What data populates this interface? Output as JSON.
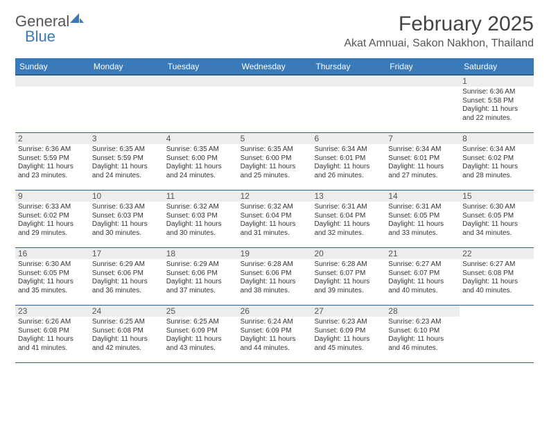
{
  "brand": {
    "word1": "General",
    "word2": "Blue"
  },
  "title": "February 2025",
  "location": "Akat Amnuai, Sakon Nakhon, Thailand",
  "colors": {
    "header_blue": "#3a7ab8",
    "header_border": "#2d5e8f",
    "daynum_bg": "#eceeee",
    "text": "#333333",
    "title_text": "#444444"
  },
  "dow": [
    "Sunday",
    "Monday",
    "Tuesday",
    "Wednesday",
    "Thursday",
    "Friday",
    "Saturday"
  ],
  "weeks": [
    [
      null,
      null,
      null,
      null,
      null,
      null,
      {
        "n": "1",
        "sr": "Sunrise: 6:36 AM",
        "ss": "Sunset: 5:58 PM",
        "dl": "Daylight: 11 hours and 22 minutes."
      }
    ],
    [
      {
        "n": "2",
        "sr": "Sunrise: 6:36 AM",
        "ss": "Sunset: 5:59 PM",
        "dl": "Daylight: 11 hours and 23 minutes."
      },
      {
        "n": "3",
        "sr": "Sunrise: 6:35 AM",
        "ss": "Sunset: 5:59 PM",
        "dl": "Daylight: 11 hours and 24 minutes."
      },
      {
        "n": "4",
        "sr": "Sunrise: 6:35 AM",
        "ss": "Sunset: 6:00 PM",
        "dl": "Daylight: 11 hours and 24 minutes."
      },
      {
        "n": "5",
        "sr": "Sunrise: 6:35 AM",
        "ss": "Sunset: 6:00 PM",
        "dl": "Daylight: 11 hours and 25 minutes."
      },
      {
        "n": "6",
        "sr": "Sunrise: 6:34 AM",
        "ss": "Sunset: 6:01 PM",
        "dl": "Daylight: 11 hours and 26 minutes."
      },
      {
        "n": "7",
        "sr": "Sunrise: 6:34 AM",
        "ss": "Sunset: 6:01 PM",
        "dl": "Daylight: 11 hours and 27 minutes."
      },
      {
        "n": "8",
        "sr": "Sunrise: 6:34 AM",
        "ss": "Sunset: 6:02 PM",
        "dl": "Daylight: 11 hours and 28 minutes."
      }
    ],
    [
      {
        "n": "9",
        "sr": "Sunrise: 6:33 AM",
        "ss": "Sunset: 6:02 PM",
        "dl": "Daylight: 11 hours and 29 minutes."
      },
      {
        "n": "10",
        "sr": "Sunrise: 6:33 AM",
        "ss": "Sunset: 6:03 PM",
        "dl": "Daylight: 11 hours and 30 minutes."
      },
      {
        "n": "11",
        "sr": "Sunrise: 6:32 AM",
        "ss": "Sunset: 6:03 PM",
        "dl": "Daylight: 11 hours and 30 minutes."
      },
      {
        "n": "12",
        "sr": "Sunrise: 6:32 AM",
        "ss": "Sunset: 6:04 PM",
        "dl": "Daylight: 11 hours and 31 minutes."
      },
      {
        "n": "13",
        "sr": "Sunrise: 6:31 AM",
        "ss": "Sunset: 6:04 PM",
        "dl": "Daylight: 11 hours and 32 minutes."
      },
      {
        "n": "14",
        "sr": "Sunrise: 6:31 AM",
        "ss": "Sunset: 6:05 PM",
        "dl": "Daylight: 11 hours and 33 minutes."
      },
      {
        "n": "15",
        "sr": "Sunrise: 6:30 AM",
        "ss": "Sunset: 6:05 PM",
        "dl": "Daylight: 11 hours and 34 minutes."
      }
    ],
    [
      {
        "n": "16",
        "sr": "Sunrise: 6:30 AM",
        "ss": "Sunset: 6:05 PM",
        "dl": "Daylight: 11 hours and 35 minutes."
      },
      {
        "n": "17",
        "sr": "Sunrise: 6:29 AM",
        "ss": "Sunset: 6:06 PM",
        "dl": "Daylight: 11 hours and 36 minutes."
      },
      {
        "n": "18",
        "sr": "Sunrise: 6:29 AM",
        "ss": "Sunset: 6:06 PM",
        "dl": "Daylight: 11 hours and 37 minutes."
      },
      {
        "n": "19",
        "sr": "Sunrise: 6:28 AM",
        "ss": "Sunset: 6:06 PM",
        "dl": "Daylight: 11 hours and 38 minutes."
      },
      {
        "n": "20",
        "sr": "Sunrise: 6:28 AM",
        "ss": "Sunset: 6:07 PM",
        "dl": "Daylight: 11 hours and 39 minutes."
      },
      {
        "n": "21",
        "sr": "Sunrise: 6:27 AM",
        "ss": "Sunset: 6:07 PM",
        "dl": "Daylight: 11 hours and 40 minutes."
      },
      {
        "n": "22",
        "sr": "Sunrise: 6:27 AM",
        "ss": "Sunset: 6:08 PM",
        "dl": "Daylight: 11 hours and 40 minutes."
      }
    ],
    [
      {
        "n": "23",
        "sr": "Sunrise: 6:26 AM",
        "ss": "Sunset: 6:08 PM",
        "dl": "Daylight: 11 hours and 41 minutes."
      },
      {
        "n": "24",
        "sr": "Sunrise: 6:25 AM",
        "ss": "Sunset: 6:08 PM",
        "dl": "Daylight: 11 hours and 42 minutes."
      },
      {
        "n": "25",
        "sr": "Sunrise: 6:25 AM",
        "ss": "Sunset: 6:09 PM",
        "dl": "Daylight: 11 hours and 43 minutes."
      },
      {
        "n": "26",
        "sr": "Sunrise: 6:24 AM",
        "ss": "Sunset: 6:09 PM",
        "dl": "Daylight: 11 hours and 44 minutes."
      },
      {
        "n": "27",
        "sr": "Sunrise: 6:23 AM",
        "ss": "Sunset: 6:09 PM",
        "dl": "Daylight: 11 hours and 45 minutes."
      },
      {
        "n": "28",
        "sr": "Sunrise: 6:23 AM",
        "ss": "Sunset: 6:10 PM",
        "dl": "Daylight: 11 hours and 46 minutes."
      },
      null
    ]
  ]
}
